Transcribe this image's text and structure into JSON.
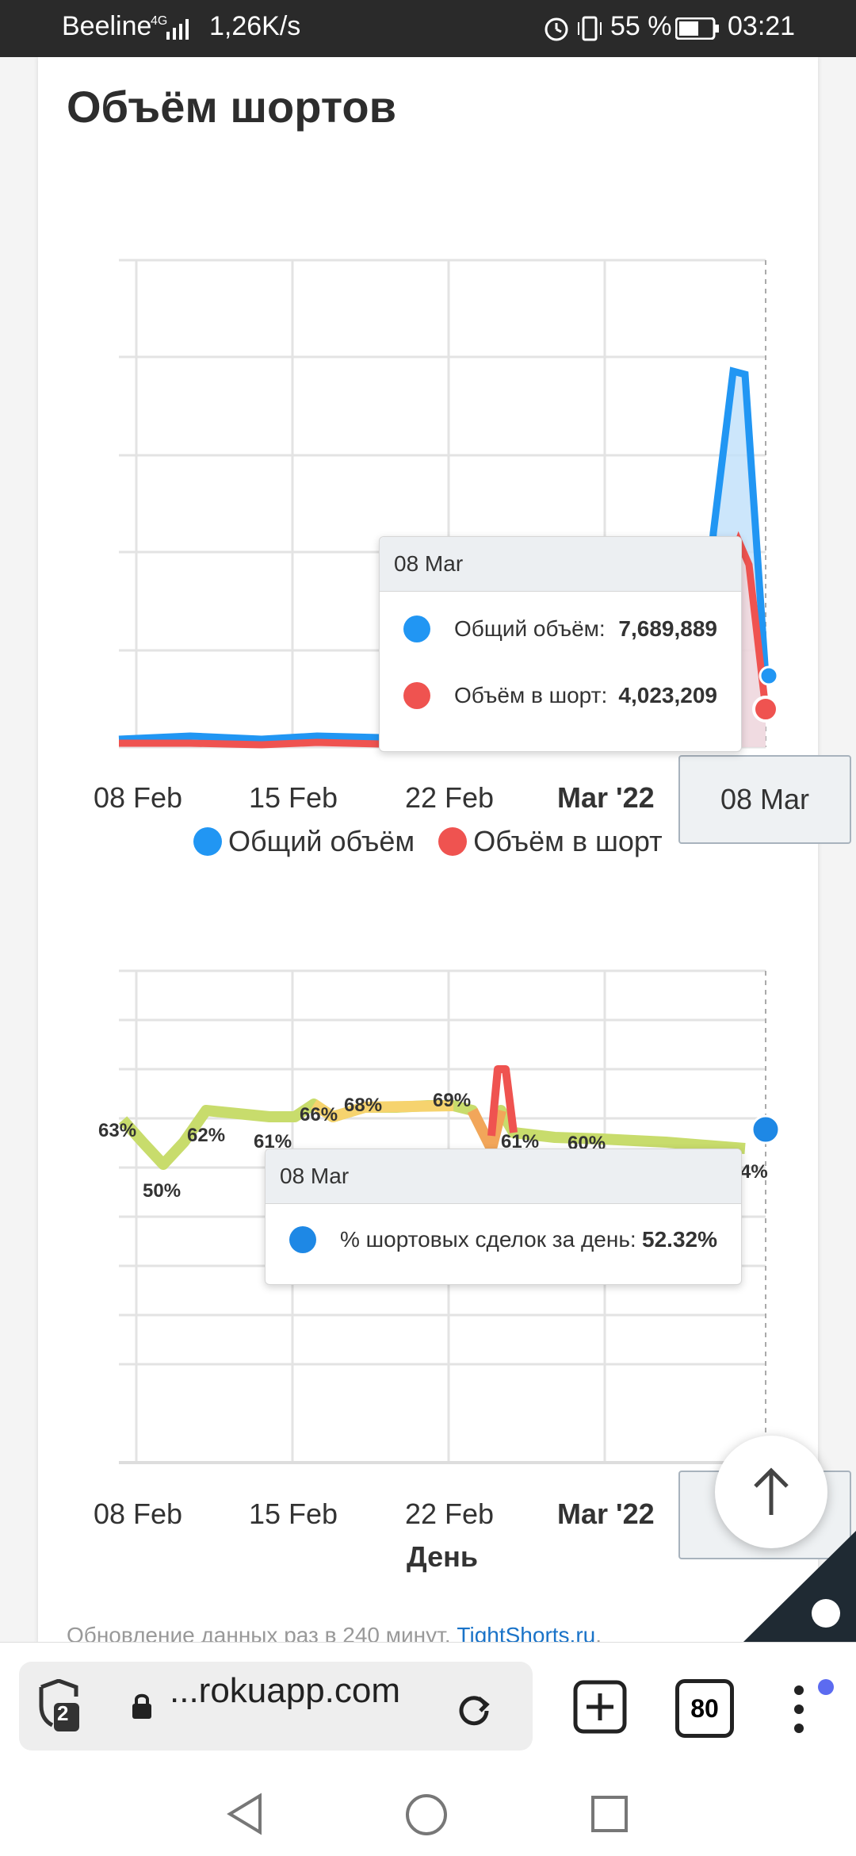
{
  "status_bar": {
    "carrier": "Beeline",
    "network": "4G",
    "speed": "1,26K/s",
    "battery": "55 %",
    "time": "03:21"
  },
  "card": {
    "title": "Объём шортов"
  },
  "chart_data": [
    {
      "type": "area",
      "title": "",
      "x": [
        "08 Feb",
        "15 Feb",
        "22 Feb",
        "Mar '22",
        "08 Mar"
      ],
      "x_ticks": [
        "08 Feb",
        "15 Feb",
        "22 Feb",
        "Mar '22"
      ],
      "series": [
        {
          "name": "Общий объём",
          "color": "#2196f3",
          "values_note_last": 7689889
        },
        {
          "name": "Объём в шорт",
          "color": "#ef5350",
          "values_note_last": 4023209
        }
      ],
      "grid": true,
      "legend": "bottom"
    },
    {
      "type": "line",
      "x_ticks": [
        "08 Feb",
        "15 Feb",
        "22 Feb",
        "Mar '22"
      ],
      "xlabel": "День",
      "data_labels": [
        "63%",
        "50%",
        "62%",
        "61%",
        "66%",
        "68%",
        "69%",
        "61%",
        "60%",
        "4%"
      ],
      "series": [
        {
          "name": "% шортовых сделок за день",
          "color": "#4caf50"
        }
      ],
      "grid": true
    }
  ],
  "tooltip1": {
    "date": "08 Mar",
    "row1_label": "Общий объём:",
    "row1_value": "7,689,889",
    "row2_label": "Объём в шорт:",
    "row2_value": "4,023,209"
  },
  "tooltip2": {
    "date": "08 Mar",
    "row1_label": "% шортовых сделок за день:",
    "row1_value": "52.32%"
  },
  "xaxis_highlight": "08 Mar",
  "legend": {
    "item1": "Общий объём",
    "item2": "Объём в шорт"
  },
  "chart2_xlabel": "День",
  "footer": {
    "text": "Обновление данных раз в 240 минут.",
    "link": "TightShorts.ru",
    "suffix": "."
  },
  "browser": {
    "tabs_count": "2",
    "url": "...rokuapp.com",
    "tab_counter": "80"
  }
}
